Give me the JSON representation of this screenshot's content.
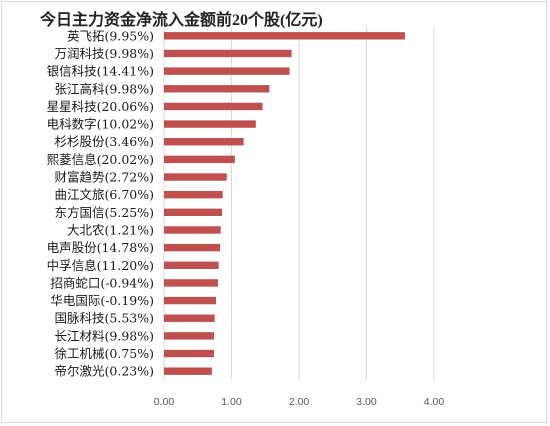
{
  "chart_data": {
    "type": "bar",
    "orientation": "horizontal",
    "title": "今日主力资金净流入金额前20个股(亿元)",
    "categories": [
      "英飞拓(9.95%)",
      "万润科技(9.98%)",
      "银信科技(14.41%)",
      "张江高科(9.98%)",
      "星星科技(20.06%)",
      "电科数字(10.02%)",
      "杉杉股份(3.46%)",
      "熙菱信息(20.02%)",
      "财富趋势(2.72%)",
      "曲江文旅(6.70%)",
      "东方国信(5.25%)",
      "大北农(1.21%)",
      "电声股份(14.78%)",
      "中孚信息(11.20%)",
      "招商蛇口(-0.94%)",
      "华电国际(-0.19%)",
      "国脉科技(5.53%)",
      "长江材料(9.98%)",
      "徐工机械(0.75%)",
      "帝尔激光(0.23%)"
    ],
    "values": [
      3.57,
      1.89,
      1.86,
      1.56,
      1.46,
      1.36,
      1.18,
      1.05,
      0.93,
      0.87,
      0.86,
      0.84,
      0.83,
      0.81,
      0.8,
      0.77,
      0.75,
      0.74,
      0.74,
      0.71
    ],
    "xlim": [
      0,
      4
    ],
    "xticks": [
      "0.00",
      "1.00",
      "2.00",
      "3.00",
      "4.00"
    ],
    "xtick_values": [
      0,
      1,
      2,
      3,
      4
    ],
    "grid": true,
    "bar_color": "#c0504d",
    "grid_color": "#d9d9d9"
  }
}
